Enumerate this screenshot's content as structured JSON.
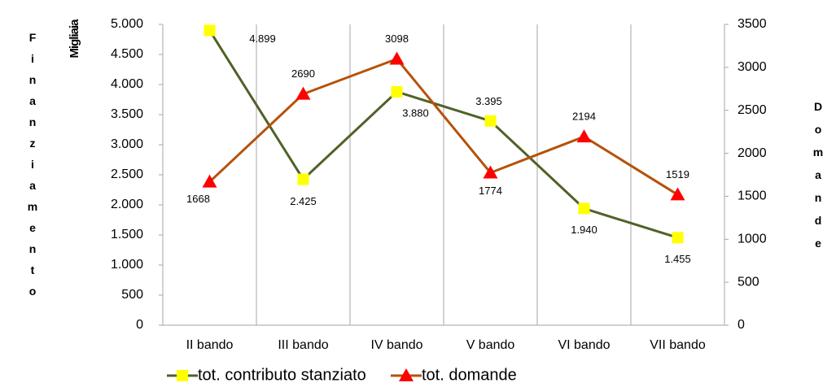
{
  "chart_data": {
    "type": "line",
    "y_label": "Finanziamento",
    "y_unit": "Migliaia",
    "y2_label": "Domande",
    "categories": [
      "II bando",
      "III bando",
      "IV bando",
      "V bando",
      "VI bando",
      "VII bando"
    ],
    "series": [
      {
        "name": "tot. contributo stanziato",
        "color": "#4f6228",
        "marker_color": "#ffff00",
        "marker": "square",
        "values": [
          4899,
          2425,
          3880,
          3395,
          1940,
          1455
        ],
        "value_labels": [
          "4.899",
          "2.425",
          "3.880",
          "3.395",
          "1.940",
          "1.455"
        ]
      },
      {
        "name": "tot. domande",
        "color": "#b5520c",
        "marker_color": "#ff0000",
        "marker": "triangle",
        "axis": "y2",
        "values": [
          1668,
          2690,
          3098,
          1774,
          2194,
          1519
        ]
      }
    ],
    "ylim": [
      0,
      5000
    ],
    "yticks": [
      0,
      500,
      {
        "value": 1000,
        "label": "1.000"
      },
      {
        "value": 1500,
        "label": "1.500"
      },
      {
        "value": 2000,
        "label": "2.000"
      },
      {
        "value": 2500,
        "label": "2.500"
      },
      {
        "value": 3000,
        "label": "3.000"
      },
      {
        "value": 3500,
        "label": "3.500"
      },
      {
        "value": 4000,
        "label": "4.000"
      },
      {
        "value": 4500,
        "label": "4.500"
      },
      {
        "value": 5000,
        "label": "5.000"
      }
    ],
    "y2lim": [
      0,
      3500
    ],
    "y2ticks": [
      0,
      500,
      1000,
      1500,
      2000,
      2500,
      3000,
      3500
    ]
  }
}
